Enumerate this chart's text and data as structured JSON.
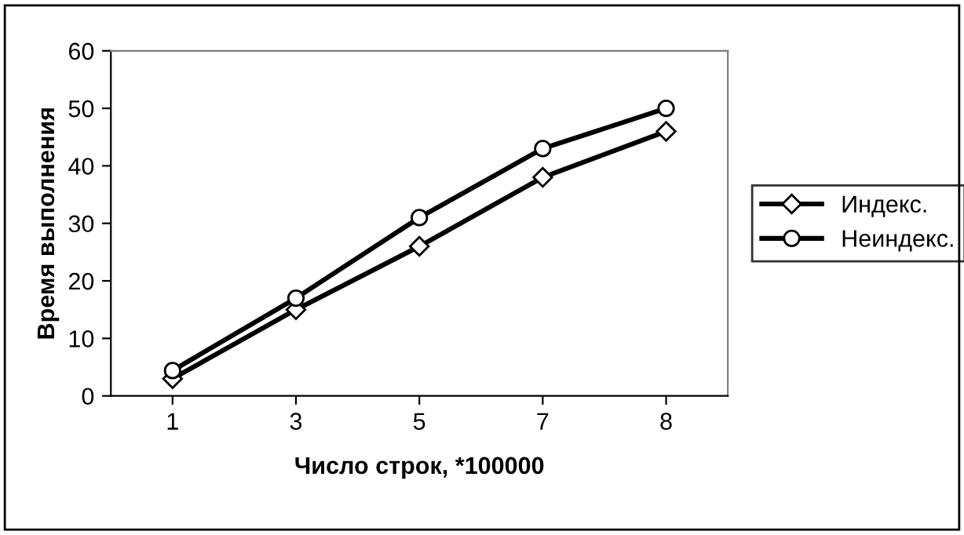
{
  "chart_data": {
    "type": "line",
    "xlabel": "Число строк, *100000",
    "ylabel": "Время выполнения",
    "categories": [
      "1",
      "3",
      "5",
      "7",
      "8"
    ],
    "series": [
      {
        "name": "Индекс.",
        "color": "#000000",
        "marker": "diamond",
        "values": [
          3,
          15,
          26,
          38,
          46
        ]
      },
      {
        "name": "Неиндекс.",
        "color": "#000000",
        "marker": "circle",
        "values": [
          4.4,
          17,
          31,
          43,
          50
        ]
      }
    ],
    "ylim": [
      0,
      60
    ],
    "yticks": [
      0,
      10,
      20,
      30,
      40,
      50,
      60
    ],
    "grid": false,
    "legend": "right",
    "line_style": "solid"
  }
}
